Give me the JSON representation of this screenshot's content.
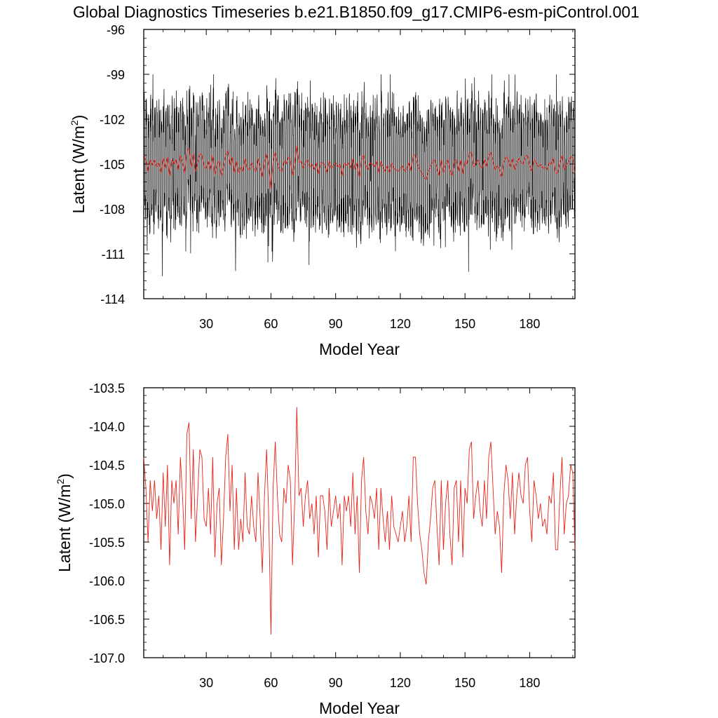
{
  "title": "Global Diagnostics Timeseries b.e21.B1850.f09_g17.CMIP6-esm-piControl.001",
  "colors": {
    "monthly": "#000000",
    "annual": "#e8231a",
    "axis": "#000000",
    "background": "#ffffff"
  },
  "chart_data": [
    {
      "type": "line",
      "xlabel": "Model Year",
      "ylabel_text": "Latent (W/m",
      "ylabel_sup": "2",
      "ylabel_close": ")",
      "xlim": [
        1,
        201
      ],
      "ylim": [
        -114,
        -96
      ],
      "x_ticks": [
        30,
        60,
        90,
        120,
        150,
        180
      ],
      "x_tick_labels": [
        "30",
        "60",
        "90",
        "120",
        "150",
        "180"
      ],
      "y_ticks": [
        -96,
        -99,
        -102,
        -105,
        -108,
        -111,
        -114
      ],
      "y_tick_labels": [
        "-96",
        "-99",
        "-102",
        "-105",
        "-108",
        "-111",
        "-114"
      ],
      "series": [
        {
          "name": "",
          "color": "#000000",
          "resolution": "monthly",
          "x_start": 1,
          "x_step": 0.08333,
          "mean": -105.0,
          "range_low": -112.5,
          "range_high": -99.0
        },
        {
          "name": "",
          "color": "#e8231a",
          "resolution": "annual"
        }
      ]
    },
    {
      "type": "line",
      "xlabel": "Model Year",
      "ylabel_text": "Latent (W/m",
      "ylabel_sup": "2",
      "ylabel_close": ")",
      "xlim": [
        1,
        201
      ],
      "ylim": [
        -107.0,
        -103.5
      ],
      "x_ticks": [
        30,
        60,
        90,
        120,
        150,
        180
      ],
      "x_tick_labels": [
        "30",
        "60",
        "90",
        "120",
        "150",
        "180"
      ],
      "y_ticks": [
        -103.5,
        -104.0,
        -104.5,
        -105.0,
        -105.5,
        -106.0,
        -106.5,
        -107.0
      ],
      "y_tick_labels": [
        "-103.5",
        "-104.0",
        "-104.5",
        "-105.0",
        "-105.5",
        "-106.0",
        "-106.5",
        "-107.0"
      ],
      "series": [
        {
          "name": "",
          "color": "#e8231a",
          "resolution": "annual",
          "x_start": 1,
          "x_step": 1,
          "values": [
            -104.4,
            -104.8,
            -105.5,
            -104.7,
            -105.1,
            -104.7,
            -105.2,
            -104.9,
            -105.6,
            -104.6,
            -105.3,
            -104.5,
            -105.8,
            -104.7,
            -105.0,
            -104.7,
            -105.4,
            -104.4,
            -104.9,
            -105.6,
            -104.1,
            -103.95,
            -105.2,
            -104.3,
            -105.5,
            -104.9,
            -104.3,
            -104.4,
            -105.2,
            -105.3,
            -104.8,
            -105.4,
            -104.4,
            -105.7,
            -105.0,
            -104.8,
            -105.8,
            -105.2,
            -104.4,
            -104.1,
            -105.1,
            -104.5,
            -105.6,
            -104.8,
            -105.6,
            -105.2,
            -105.5,
            -104.6,
            -105.3,
            -105.4,
            -104.9,
            -105.3,
            -105.5,
            -104.6,
            -105.2,
            -105.9,
            -104.9,
            -104.3,
            -105.2,
            -106.7,
            -104.8,
            -104.2,
            -104.9,
            -105.4,
            -105.5,
            -104.8,
            -105.0,
            -104.5,
            -104.7,
            -105.8,
            -105.0,
            -103.75,
            -104.9,
            -104.8,
            -105.3,
            -104.9,
            -104.7,
            -105.2,
            -105.0,
            -105.4,
            -104.9,
            -105.7,
            -104.9,
            -104.9,
            -105.1,
            -105.6,
            -104.8,
            -105.3,
            -105.1,
            -104.9,
            -105.2,
            -105.0,
            -105.8,
            -104.9,
            -105.1,
            -104.9,
            -105.3,
            -104.6,
            -105.4,
            -104.9,
            -105.9,
            -104.7,
            -104.4,
            -105.1,
            -105.4,
            -104.9,
            -105.0,
            -105.2,
            -104.8,
            -105.6,
            -104.8,
            -105.2,
            -105.5,
            -105.1,
            -105.6,
            -104.9,
            -105.3,
            -105.4,
            -105.5,
            -105.3,
            -105.1,
            -105.5,
            -105.3,
            -104.9,
            -105.5,
            -104.4,
            -104.4,
            -105.0,
            -105.4,
            -105.6,
            -105.9,
            -106.05,
            -105.5,
            -105.2,
            -104.8,
            -104.7,
            -105.3,
            -105.8,
            -104.7,
            -105.6,
            -105.0,
            -104.7,
            -105.4,
            -105.8,
            -104.8,
            -104.7,
            -105.5,
            -104.7,
            -105.7,
            -104.8,
            -105.0,
            -104.3,
            -104.2,
            -105.2,
            -104.9,
            -104.7,
            -105.1,
            -105.3,
            -104.7,
            -105.2,
            -104.4,
            -104.2,
            -104.8,
            -105.4,
            -105.1,
            -105.3,
            -105.9,
            -104.9,
            -104.5,
            -104.7,
            -105.2,
            -104.6,
            -105.4,
            -104.9,
            -104.6,
            -104.9,
            -105.0,
            -104.5,
            -104.4,
            -105.1,
            -105.5,
            -104.7,
            -104.9,
            -105.2,
            -105.0,
            -105.3,
            -105.2,
            -105.4,
            -104.9,
            -105.0,
            -104.6,
            -105.6,
            -105.6,
            -104.9,
            -104.4,
            -105.4,
            -105.0,
            -104.9,
            -104.5,
            -104.6,
            -105.6
          ]
        }
      ]
    }
  ]
}
